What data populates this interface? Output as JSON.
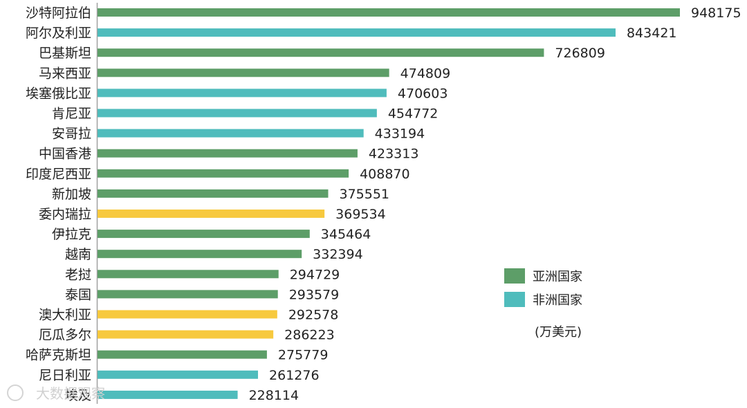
{
  "chart_data": {
    "type": "bar",
    "orientation": "horizontal",
    "unit": "(万美元)",
    "xlim": [
      0,
      948175
    ],
    "categories": [
      "沙特阿拉伯",
      "阿尔及利亚",
      "巴基斯坦",
      "马来西亚",
      "埃塞俄比亚",
      "肯尼亚",
      "安哥拉",
      "中国香港",
      "印度尼西亚",
      "新加坡",
      "委内瑞拉",
      "伊拉克",
      "越南",
      "老挝",
      "泰国",
      "澳大利亚",
      "厄瓜多尔",
      "哈萨克斯坦",
      "尼日利亚",
      "埃及"
    ],
    "values": [
      948175,
      843421,
      726809,
      474809,
      470603,
      454772,
      433194,
      423313,
      408870,
      375551,
      369534,
      345464,
      332394,
      294729,
      293579,
      292578,
      286223,
      275779,
      261276,
      228114
    ],
    "groups": [
      "asia",
      "africa",
      "asia",
      "asia",
      "africa",
      "africa",
      "africa",
      "asia",
      "asia",
      "asia",
      "other",
      "asia",
      "asia",
      "asia",
      "asia",
      "other",
      "other",
      "asia",
      "africa",
      "africa"
    ],
    "colors": {
      "asia": "#5d9e68",
      "africa": "#4fbcbc",
      "other": "#f7c93e"
    },
    "legend": [
      {
        "group": "asia",
        "label": "亚洲国家"
      },
      {
        "group": "africa",
        "label": "非洲国家"
      }
    ],
    "legend_position": "right"
  },
  "watermark_text": "大数据观察"
}
